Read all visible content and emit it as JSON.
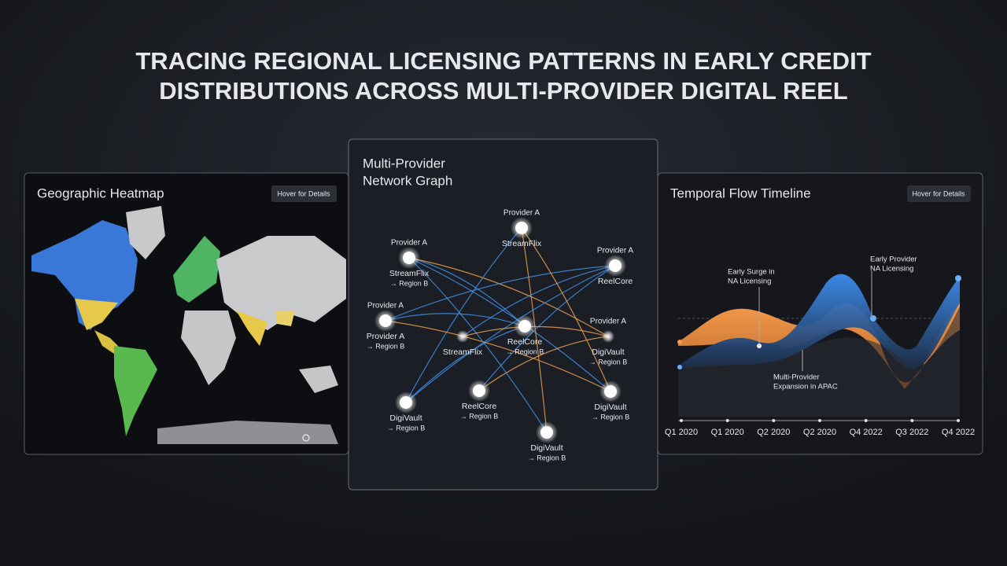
{
  "header": {
    "title_lines": [
      "TRACING REGIONAL LICENSING PATTERNS IN EARLY CREDIT",
      "DISTRIBUTIONS ACROSS MULTI-PROVIDER DIGITAL REEL"
    ]
  },
  "heatmap": {
    "title": "Geographic Heatmap",
    "button": "Hover for Details"
  },
  "network": {
    "title_lines": [
      "Multi-Provider",
      "Network Graph"
    ],
    "nodes": [
      {
        "above": "Provider A",
        "label": "StreamFlix"
      },
      {
        "above": "Provider A",
        "label": "StreamFlix",
        "sub": "→ Region B"
      },
      {
        "above": "Provider A",
        "label": "ReelCore"
      },
      {
        "above": "Provider A",
        "label": "Provider A",
        "sub": "→ Region B"
      },
      {
        "label": "StreamFlix"
      },
      {
        "label": "ReelCore",
        "sub": "→ Region B"
      },
      {
        "above": "Provider A",
        "label": "DigiVault",
        "sub": "→ Region B"
      },
      {
        "label": "DigiVault",
        "sub": "→ Region B"
      },
      {
        "label": "ReelCore",
        "sub": "→ Region B"
      },
      {
        "label": "DigiVault",
        "sub": "→ Region B"
      },
      {
        "label": "DigiVault",
        "sub": "→ Region B"
      }
    ]
  },
  "timeline": {
    "title": "Temporal Flow Timeline",
    "button": "Hover for Details",
    "annotations": [
      [
        "Early Surge in",
        "NA Licensing"
      ],
      [
        "Early Provider",
        "NA Licensing"
      ],
      [
        "Multi-Provider",
        "Expansion in APAC"
      ]
    ],
    "x_labels": [
      "Q1 2020",
      "Q1 2020",
      "Q2 2020",
      "Q2 2020",
      "Q4 2022",
      "Q3 2022",
      "Q4 2022"
    ]
  }
}
